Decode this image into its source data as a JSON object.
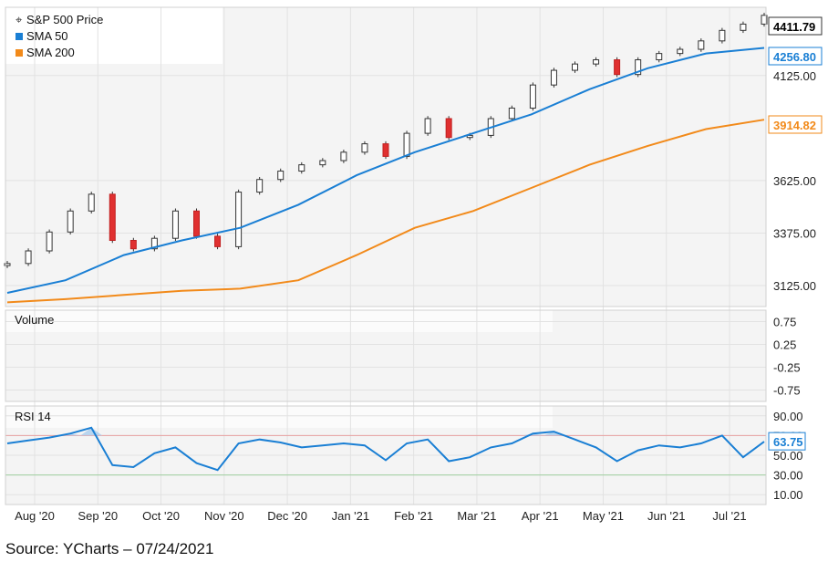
{
  "chart_data": {
    "type": "candlestick",
    "title": "S&P 500 Price",
    "x_ticks": [
      "Aug '20",
      "Sep '20",
      "Oct '20",
      "Nov '20",
      "Dec '20",
      "Jan '21",
      "Feb '21",
      "Mar '21",
      "Apr '21",
      "May '21",
      "Jun '21",
      "Jul '21"
    ],
    "price_panel": {
      "ylim": [
        3025,
        4450
      ],
      "y_ticks": [
        "4125.00",
        "3625.00",
        "3375.00",
        "3125.00"
      ],
      "legend": [
        {
          "name": "S&P 500 Price",
          "color": "#333333"
        },
        {
          "name": "SMA 50",
          "color": "#1a7fd4"
        },
        {
          "name": "SMA 200",
          "color": "#f28a1a"
        }
      ],
      "price_close_series": [
        [
          "Jul '20 end",
          3230
        ],
        [
          "Aug '20",
          3290
        ],
        [
          "Aug '20 mid",
          3380
        ],
        [
          "Aug '20 late",
          3480
        ],
        [
          "Sep '20",
          3560
        ],
        [
          "Sep '20 mid",
          3340
        ],
        [
          "Sep '20 late",
          3300
        ],
        [
          "Oct '20",
          3350
        ],
        [
          "Oct '20 mid",
          3480
        ],
        [
          "Oct '20 late",
          3360
        ],
        [
          "Nov '20",
          3310
        ],
        [
          "Nov '20 mid",
          3570
        ],
        [
          "Nov '20 late",
          3630
        ],
        [
          "Dec '20",
          3670
        ],
        [
          "Dec '20 mid",
          3700
        ],
        [
          "Dec '20 late",
          3720
        ],
        [
          "Jan '21",
          3760
        ],
        [
          "Jan '21 mid",
          3800
        ],
        [
          "Jan '21 late",
          3740
        ],
        [
          "Feb '21",
          3850
        ],
        [
          "Feb '21 mid",
          3920
        ],
        [
          "Feb '21 late",
          3830
        ],
        [
          "Mar '21",
          3840
        ],
        [
          "Mar '21 mid",
          3920
        ],
        [
          "Mar '21 late",
          3970
        ],
        [
          "Apr '21",
          4080
        ],
        [
          "Apr '21 mid",
          4150
        ],
        [
          "Apr '21 late",
          4180
        ],
        [
          "May '21",
          4200
        ],
        [
          "May '21 mid",
          4130
        ],
        [
          "May '21 late",
          4200
        ],
        [
          "Jun '21",
          4230
        ],
        [
          "Jun '21 mid",
          4250
        ],
        [
          "Jun '21 late",
          4290
        ],
        [
          "Jul '21",
          4340
        ],
        [
          "Jul '21 mid",
          4370
        ],
        [
          "Jul '21 late",
          4411.79
        ]
      ],
      "sma_50_series": [
        [
          "Jul '20 end",
          3090
        ],
        [
          "Aug '20",
          3150
        ],
        [
          "Sep '20",
          3270
        ],
        [
          "Oct '20",
          3340
        ],
        [
          "Nov '20",
          3400
        ],
        [
          "Dec '20",
          3510
        ],
        [
          "Jan '21",
          3650
        ],
        [
          "Feb '21",
          3760
        ],
        [
          "Mar '21",
          3850
        ],
        [
          "Apr '21",
          3940
        ],
        [
          "May '21",
          4060
        ],
        [
          "Jun '21",
          4160
        ],
        [
          "Jul '21",
          4230
        ],
        [
          "Jul '21 late",
          4256.8
        ]
      ],
      "sma_200_series": [
        [
          "Jul '20 end",
          3045
        ],
        [
          "Aug '20",
          3060
        ],
        [
          "Sep '20",
          3080
        ],
        [
          "Oct '20",
          3100
        ],
        [
          "Nov '20",
          3110
        ],
        [
          "Dec '20",
          3150
        ],
        [
          "Jan '21",
          3270
        ],
        [
          "Feb '21",
          3400
        ],
        [
          "Mar '21",
          3480
        ],
        [
          "Apr '21",
          3590
        ],
        [
          "May '21",
          3700
        ],
        [
          "Jun '21",
          3790
        ],
        [
          "Jul '21",
          3870
        ],
        [
          "Jul '21 late",
          3914.82
        ]
      ],
      "last_values": [
        {
          "label": "4411.79",
          "color": "#000000",
          "value": 4411.79
        },
        {
          "label": "4256.80",
          "color": "#1a7fd4",
          "value": 4256.8
        },
        {
          "label": "3914.82",
          "color": "#f28a1a",
          "value": 3914.82
        }
      ]
    },
    "volume_panel": {
      "title": "Volume",
      "ylim": [
        -1,
        1
      ],
      "y_ticks": [
        "0.75",
        "0.25",
        "-0.25",
        "-0.75"
      ]
    },
    "rsi_panel": {
      "title": "RSI 14",
      "ylim": [
        0,
        100
      ],
      "y_ticks": [
        "90.00",
        "70.00",
        "50.00",
        "30.00",
        "10.00"
      ],
      "overbought": 70,
      "oversold": 30,
      "last_value": {
        "label": "63.75",
        "value": 63.75
      },
      "rsi_series": [
        [
          "Jul '20 end",
          62
        ],
        [
          "Aug '20",
          65
        ],
        [
          "Aug '20 mid",
          68
        ],
        [
          "Aug '20 late",
          72
        ],
        [
          "Sep '20",
          78
        ],
        [
          "Sep '20 mid",
          40
        ],
        [
          "Sep '20 late",
          38
        ],
        [
          "Oct '20",
          52
        ],
        [
          "Oct '20 mid",
          58
        ],
        [
          "Oct '20 late",
          42
        ],
        [
          "Nov '20",
          35
        ],
        [
          "Nov '20 mid",
          62
        ],
        [
          "Nov '20 late",
          66
        ],
        [
          "Dec '20",
          63
        ],
        [
          "Dec '20 mid",
          58
        ],
        [
          "Dec '20 late",
          60
        ],
        [
          "Jan '21",
          62
        ],
        [
          "Jan '21 mid",
          60
        ],
        [
          "Jan '21 late",
          45
        ],
        [
          "Feb '21",
          62
        ],
        [
          "Feb '21 mid",
          66
        ],
        [
          "Feb '21 late",
          44
        ],
        [
          "Mar '21",
          48
        ],
        [
          "Mar '21 mid",
          58
        ],
        [
          "Mar '21 late",
          62
        ],
        [
          "Apr '21",
          72
        ],
        [
          "Apr '21 mid",
          74
        ],
        [
          "Apr '21 late",
          66
        ],
        [
          "May '21",
          58
        ],
        [
          "May '21 mid",
          44
        ],
        [
          "May '21 late",
          55
        ],
        [
          "Jun '21",
          60
        ],
        [
          "Jun '21 mid",
          58
        ],
        [
          "Jun '21 late",
          62
        ],
        [
          "Jul '21",
          70
        ],
        [
          "Jul '21 mid",
          48
        ],
        [
          "Jul '21 late",
          63.75
        ]
      ]
    },
    "grid": true,
    "legend_position": "top-left"
  },
  "source": "Source: YCharts – 07/24/2021"
}
